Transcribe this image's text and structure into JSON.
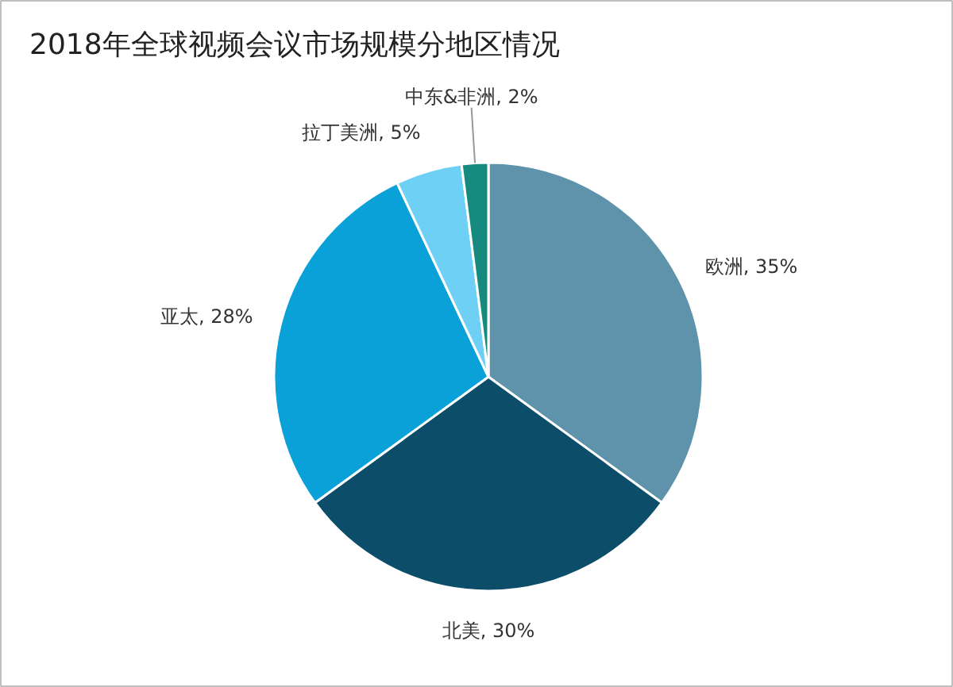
{
  "chart_data": {
    "type": "pie",
    "title": "2018年全球视频会议市场规模分地区情况",
    "categories": [
      "欧洲",
      "北美",
      "亚太",
      "拉丁美洲",
      "中东&非洲"
    ],
    "values": [
      35,
      30,
      28,
      5,
      2
    ],
    "value_labels": [
      "35%",
      "30%",
      "28%",
      "5%",
      "2%"
    ],
    "colors": [
      "#5e93ab",
      "#0c4e6a",
      "#0aa1d9",
      "#6fd0f6",
      "#168a7e"
    ]
  }
}
